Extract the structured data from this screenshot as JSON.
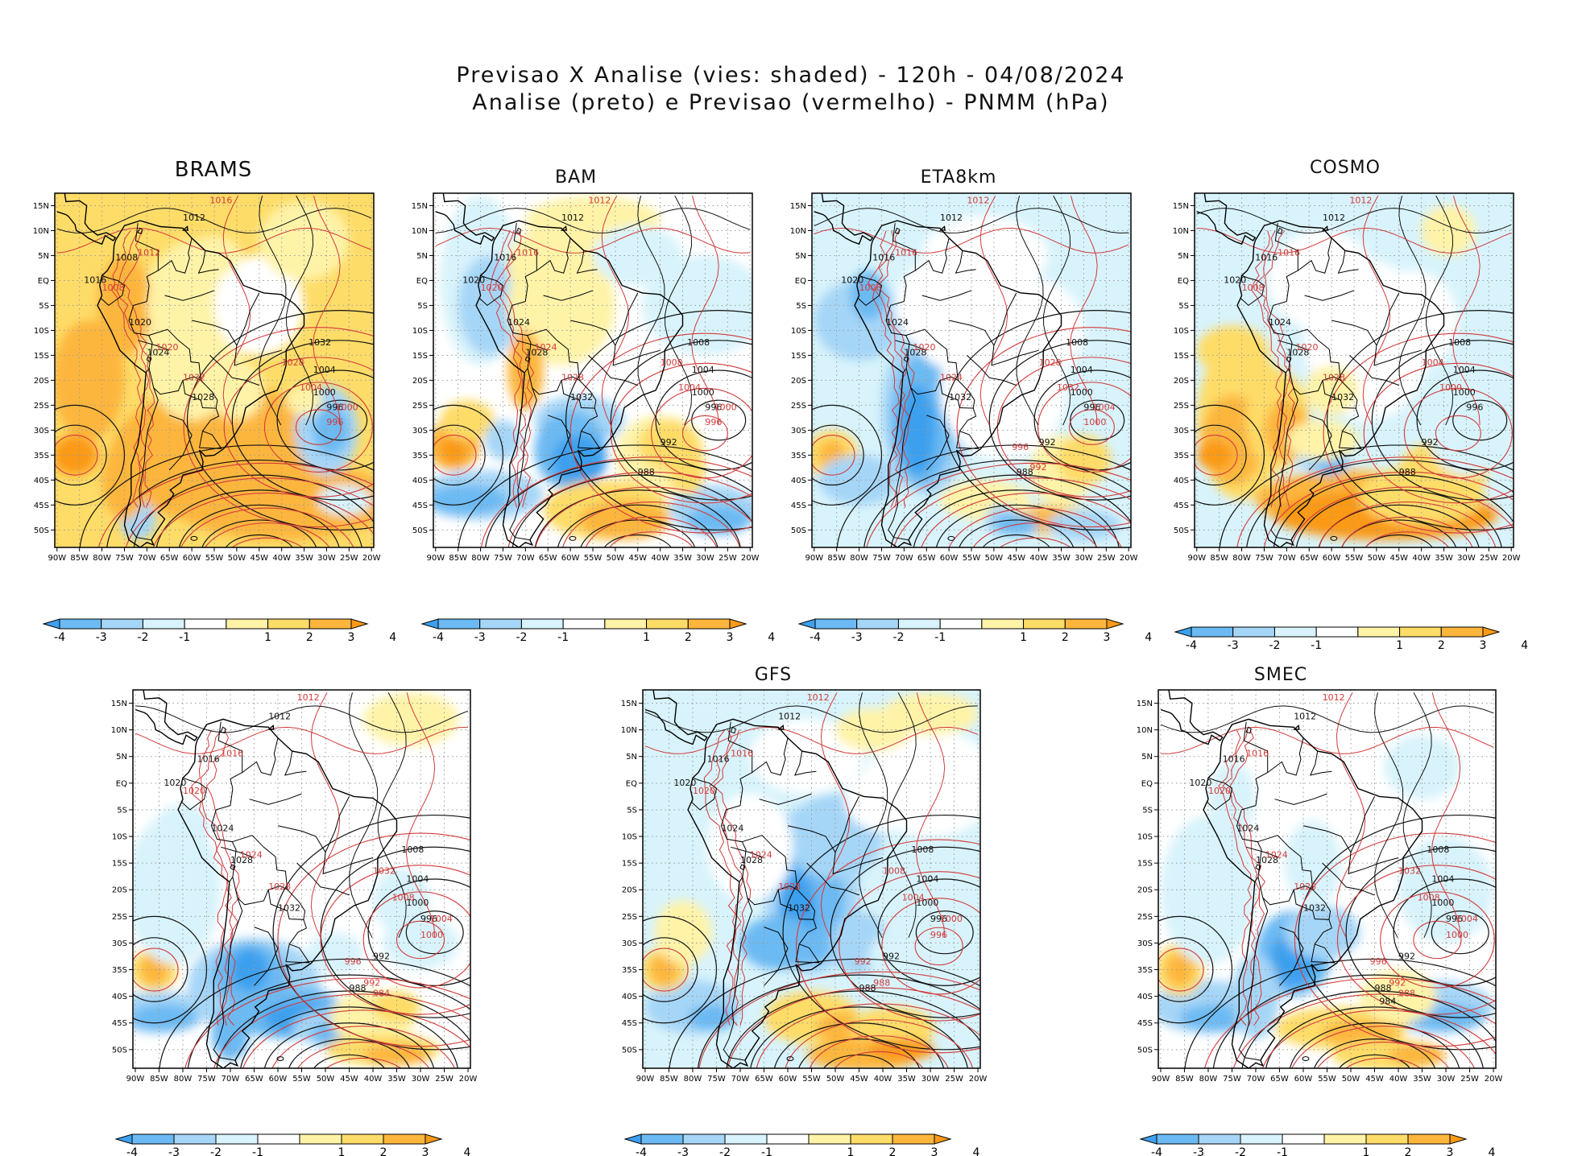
{
  "figure": {
    "title_line1": "Previsao X Analise (vies: shaded) - 120h - 04/08/2024",
    "title_line2": "Analise (preto) e Previsao (vermelho) - PNMM (hPa)"
  },
  "axes": {
    "lon_labels": [
      "90W",
      "85W",
      "80W",
      "75W",
      "70W",
      "65W",
      "60W",
      "55W",
      "50W",
      "45W",
      "40W",
      "35W",
      "30W",
      "25W",
      "20W"
    ],
    "lat_labels": [
      "15N",
      "10N",
      "5N",
      "EQ",
      "5S",
      "10S",
      "15S",
      "20S",
      "25S",
      "30S",
      "35S",
      "40S",
      "45S",
      "50S"
    ]
  },
  "colorbar": {
    "labels": [
      "-4",
      "-3",
      "-2",
      "-1",
      "1",
      "2",
      "3",
      "4"
    ],
    "colors": [
      "#3ea0ef",
      "#6cbaf3",
      "#a6d6f7",
      "#d8f3fb",
      "#ffffff",
      "#fff3a8",
      "#fedc68",
      "#fdb63c",
      "#fb9a18"
    ]
  },
  "colors": {
    "analysis_contour": "#111111",
    "forecast_contour": "#d23a3a",
    "coast": "#000000",
    "grid": "#9a9a9a"
  },
  "panels": [
    {
      "name": "BRAMS",
      "bias": "warm",
      "labels_black": [
        "1012",
        "1008",
        "1016",
        "1020",
        "1024",
        "1028",
        "1032",
        "1004",
        "1000",
        "996"
      ],
      "labels_red": [
        "1016",
        "1012",
        "1008",
        "1020",
        "1032",
        "1028",
        "1004",
        "1000",
        "996"
      ]
    },
    {
      "name": "BAM",
      "bias": "mixed",
      "labels_black": [
        "1012",
        "1016",
        "1020",
        "1024",
        "1028",
        "1032",
        "1008",
        "1004",
        "1000",
        "996",
        "992",
        "988"
      ],
      "labels_red": [
        "1012",
        "1016",
        "1020",
        "1024",
        "1028",
        "1008",
        "1004",
        "1000",
        "996"
      ]
    },
    {
      "name": "ETA8km",
      "bias": "cold",
      "labels_black": [
        "1012",
        "1016",
        "1020",
        "1024",
        "1028",
        "1032",
        "1008",
        "1004",
        "1000",
        "996",
        "992",
        "988"
      ],
      "labels_red": [
        "1012",
        "1016",
        "1008",
        "1020",
        "1024",
        "1028",
        "1032",
        "1004",
        "1000",
        "996",
        "992"
      ]
    },
    {
      "name": "COSMO",
      "bias": "warm-south",
      "labels_black": [
        "1012",
        "1016",
        "1020",
        "1024",
        "1028",
        "1032",
        "1008",
        "1004",
        "1000",
        "996",
        "992",
        "988"
      ],
      "labels_red": [
        "1012",
        "1016",
        "1008",
        "1020",
        "1028",
        "1004",
        "1000"
      ]
    },
    {
      "name": "",
      "bias": "cold-south",
      "labels_black": [
        "1012",
        "1016",
        "1020",
        "1024",
        "1028",
        "1032",
        "1008",
        "1004",
        "1000",
        "996",
        "992",
        "988"
      ],
      "labels_red": [
        "1012",
        "1016",
        "1020",
        "1024",
        "1028",
        "1032",
        "1008",
        "1004",
        "1000",
        "996",
        "992",
        "984"
      ]
    },
    {
      "name": "GFS",
      "bias": "cold",
      "labels_black": [
        "1012",
        "1016",
        "1020",
        "1024",
        "1028",
        "1032",
        "1008",
        "1004",
        "1000",
        "996",
        "992",
        "988"
      ],
      "labels_red": [
        "1012",
        "1016",
        "1020",
        "1024",
        "1028",
        "1008",
        "1004",
        "1000",
        "996",
        "992",
        "988"
      ]
    },
    {
      "name": "SMEC",
      "bias": "cold",
      "labels_black": [
        "1012",
        "1016",
        "1020",
        "1024",
        "1028",
        "1032",
        "1008",
        "1004",
        "1000",
        "996",
        "992",
        "988",
        "984"
      ],
      "labels_red": [
        "1012",
        "1016",
        "1020",
        "1024",
        "1028",
        "1032",
        "1008",
        "1004",
        "1000",
        "996",
        "992",
        "988"
      ]
    }
  ]
}
